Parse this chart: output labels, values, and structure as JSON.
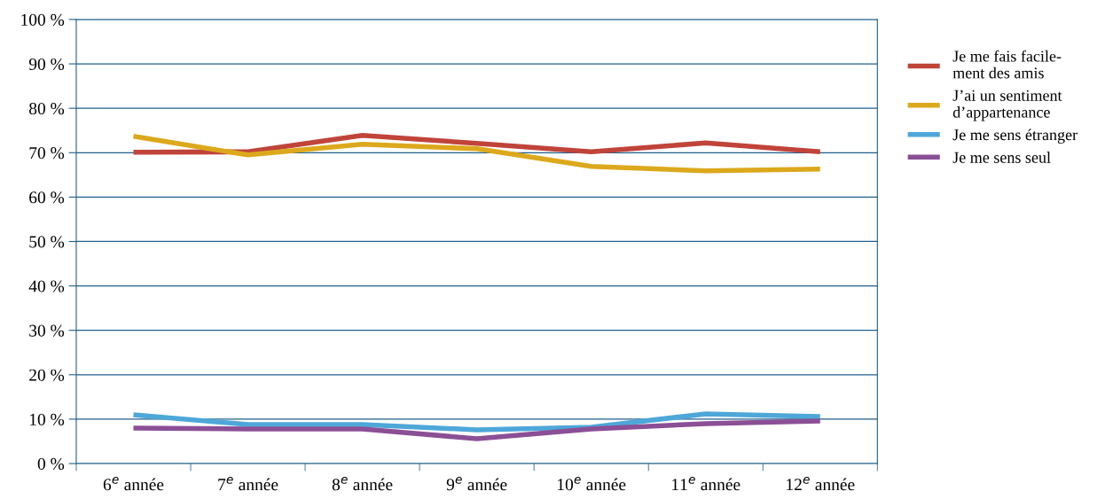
{
  "chart_data": {
    "type": "line",
    "categories": [
      "6$^{e}$ année",
      "7$^{e}$ année",
      "8$^{e}$ année",
      "9$^{e}$ année",
      "10$^{e}$ année",
      "11$^{e}$ année",
      "12$^{e}$ année"
    ],
    "series": [
      {
        "name": "Je me fais facile-\nment des amis",
        "color": "#c0443a",
        "values": [
          70.1,
          70.2,
          73.9,
          72.1,
          70.2,
          72.2,
          70.2
        ]
      },
      {
        "name": "J’ai un sentiment\nd’appartenance",
        "color": "#dca81c",
        "values": [
          73.7,
          69.5,
          71.9,
          70.9,
          66.9,
          65.9,
          66.3
        ]
      },
      {
        "name": "Je me sens étranger",
        "color": "#4ea7d9",
        "values": [
          11.0,
          8.8,
          8.8,
          7.6,
          8.2,
          11.2,
          10.6
        ]
      },
      {
        "name": "Je me sens seul",
        "color": "#8b4f96",
        "values": [
          8.0,
          7.8,
          7.8,
          5.6,
          7.8,
          9.0,
          9.6
        ]
      }
    ],
    "ylim": [
      0,
      100
    ],
    "yticks": [
      {
        "value": 0,
        "label": "0 %"
      },
      {
        "value": 10,
        "label": "10 %"
      },
      {
        "value": 20,
        "label": "20 %"
      },
      {
        "value": 30,
        "label": "30 %"
      },
      {
        "value": 40,
        "label": "40 %"
      },
      {
        "value": 50,
        "label": "50 %"
      },
      {
        "value": 60,
        "label": "60 %"
      },
      {
        "value": 70,
        "label": "70 %"
      },
      {
        "value": 80,
        "label": "80 %"
      },
      {
        "value": 90,
        "label": "90 %"
      },
      {
        "value": 100,
        "label": "100 %"
      }
    ],
    "grid": "y",
    "legend": "right",
    "marker": "none",
    "line_style": "solid"
  }
}
